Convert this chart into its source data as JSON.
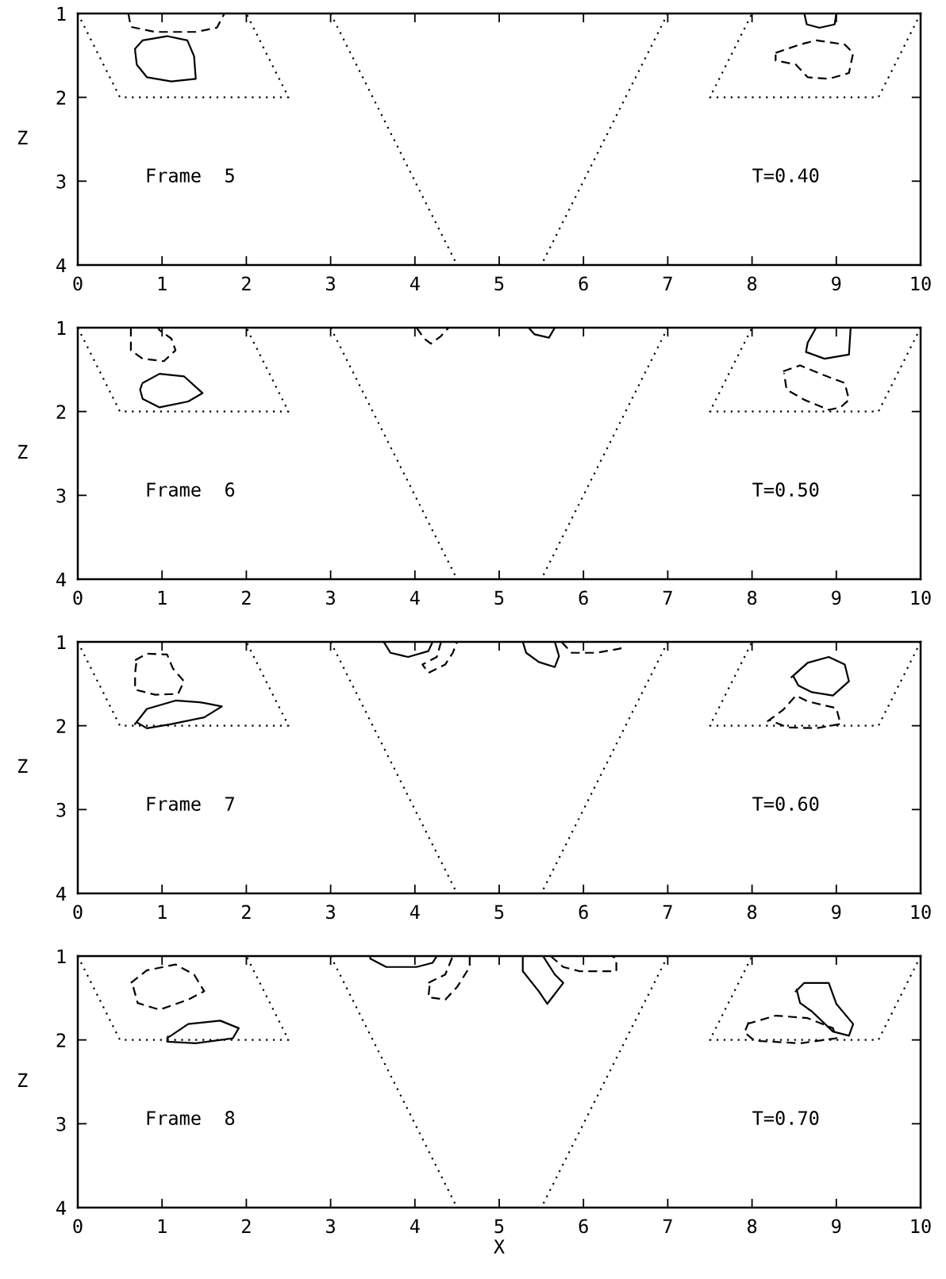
{
  "chart_data": [
    {
      "type": "line",
      "ylabel": "Z",
      "annotations": [
        "Frame  5",
        "T=0.40"
      ],
      "xlim": [
        0,
        10
      ],
      "ylim": [
        4,
        1
      ],
      "xticks": [
        0,
        1,
        2,
        3,
        4,
        5,
        6,
        7,
        8,
        9,
        10
      ],
      "yticks": [
        1,
        2,
        3,
        4
      ],
      "grid": false,
      "legend": false,
      "marker": "none",
      "series": [
        {
          "color": "#000000",
          "line_style": "dotted",
          "x": [
            0,
            0.5,
            2.5,
            2
          ],
          "values": [
            1,
            2,
            2,
            1
          ]
        },
        {
          "color": "#000000",
          "line_style": "dotted",
          "x": [
            3,
            4.5
          ],
          "values": [
            1,
            4
          ]
        },
        {
          "color": "#000000",
          "line_style": "dotted",
          "x": [
            7,
            5.5
          ],
          "values": [
            1,
            4
          ]
        },
        {
          "color": "#000000",
          "line_style": "dotted",
          "x": [
            10,
            9.5,
            7.5,
            8
          ],
          "values": [
            1,
            2,
            2,
            1
          ]
        },
        {
          "color": "#000000",
          "line_style": "dashed",
          "x": [
            0.6,
            0.63,
            0.92,
            1.4,
            1.65,
            1.74
          ],
          "values": [
            1.0,
            1.16,
            1.22,
            1.22,
            1.17,
            1.0
          ]
        },
        {
          "color": "#000000",
          "line_style": "solid",
          "x": [
            0.68,
            0.77,
            1.06,
            1.3,
            1.38,
            1.4,
            1.11,
            0.82,
            0.7,
            0.68
          ],
          "values": [
            1.42,
            1.32,
            1.27,
            1.32,
            1.51,
            1.78,
            1.81,
            1.76,
            1.61,
            1.44
          ]
        },
        {
          "color": "#000000",
          "line_style": "solid",
          "x": [
            8.62,
            8.65,
            8.8,
            8.98,
            9.0
          ],
          "values": [
            1.0,
            1.13,
            1.17,
            1.13,
            1.0
          ]
        },
        {
          "color": "#000000",
          "line_style": "dashed",
          "x": [
            8.28,
            8.57,
            8.76,
            9.1,
            9.2,
            9.15,
            8.91,
            8.66,
            8.52,
            8.28,
            8.28
          ],
          "values": [
            1.47,
            1.37,
            1.32,
            1.37,
            1.47,
            1.71,
            1.78,
            1.76,
            1.61,
            1.56,
            1.49
          ]
        }
      ]
    },
    {
      "type": "line",
      "ylabel": "Z",
      "annotations": [
        "Frame  6",
        "T=0.50"
      ],
      "xlim": [
        0,
        10
      ],
      "ylim": [
        4,
        1
      ],
      "xticks": [
        0,
        1,
        2,
        3,
        4,
        5,
        6,
        7,
        8,
        9,
        10
      ],
      "yticks": [
        1,
        2,
        3,
        4
      ],
      "grid": false,
      "legend": false,
      "marker": "none",
      "series": [
        {
          "color": "#000000",
          "line_style": "dotted",
          "x": [
            0,
            0.5,
            2.5,
            2
          ],
          "values": [
            1,
            2,
            2,
            1
          ]
        },
        {
          "color": "#000000",
          "line_style": "dotted",
          "x": [
            3,
            4.5
          ],
          "values": [
            1,
            4
          ]
        },
        {
          "color": "#000000",
          "line_style": "dotted",
          "x": [
            7,
            5.5
          ],
          "values": [
            1,
            4
          ]
        },
        {
          "color": "#000000",
          "line_style": "dotted",
          "x": [
            10,
            9.5,
            7.5,
            8
          ],
          "values": [
            1,
            2,
            2,
            1
          ]
        },
        {
          "color": "#000000",
          "line_style": "dashed",
          "x": [
            0.63,
            0.63,
            0.77,
            1.02,
            1.16,
            1.11,
            0.97,
            0.95
          ],
          "values": [
            1.0,
            1.27,
            1.37,
            1.4,
            1.27,
            1.13,
            1.03,
            1.0
          ]
        },
        {
          "color": "#000000",
          "line_style": "solid",
          "x": [
            0.77,
            0.97,
            1.26,
            1.48,
            1.31,
            0.97,
            0.77,
            0.74,
            0.76
          ],
          "values": [
            1.66,
            1.55,
            1.58,
            1.78,
            1.88,
            1.95,
            1.85,
            1.74,
            1.68
          ]
        },
        {
          "color": "#000000",
          "line_style": "dashed",
          "x": [
            4.02,
            4.11,
            4.19,
            4.31,
            4.4
          ],
          "values": [
            1.0,
            1.13,
            1.19,
            1.1,
            1.0
          ]
        },
        {
          "color": "#000000",
          "line_style": "solid",
          "x": [
            5.35,
            5.42,
            5.59,
            5.66
          ],
          "values": [
            1.0,
            1.08,
            1.12,
            1.0
          ]
        },
        {
          "color": "#000000",
          "line_style": "solid",
          "x": [
            8.76,
            8.66,
            8.64,
            8.86,
            9.15,
            9.17
          ],
          "values": [
            1.0,
            1.18,
            1.29,
            1.37,
            1.32,
            1.0
          ]
        },
        {
          "color": "#000000",
          "line_style": "dashed",
          "x": [
            8.37,
            8.57,
            8.81,
            9.1,
            9.15,
            9.05,
            8.91,
            8.62,
            8.41,
            8.38
          ],
          "values": [
            1.52,
            1.45,
            1.55,
            1.66,
            1.86,
            1.95,
            1.98,
            1.86,
            1.74,
            1.54
          ]
        }
      ]
    },
    {
      "type": "line",
      "ylabel": "Z",
      "annotations": [
        "Frame  7",
        "T=0.60"
      ],
      "xlim": [
        0,
        10
      ],
      "ylim": [
        4,
        1
      ],
      "xticks": [
        0,
        1,
        2,
        3,
        4,
        5,
        6,
        7,
        8,
        9,
        10
      ],
      "yticks": [
        1,
        2,
        3,
        4
      ],
      "grid": false,
      "legend": false,
      "marker": "none",
      "series": [
        {
          "color": "#000000",
          "line_style": "dotted",
          "x": [
            0,
            0.5,
            2.5,
            2
          ],
          "values": [
            1,
            2,
            2,
            1
          ]
        },
        {
          "color": "#000000",
          "line_style": "dotted",
          "x": [
            3,
            4.5
          ],
          "values": [
            1,
            4
          ]
        },
        {
          "color": "#000000",
          "line_style": "dotted",
          "x": [
            7,
            5.5
          ],
          "values": [
            1,
            4
          ]
        },
        {
          "color": "#000000",
          "line_style": "dotted",
          "x": [
            10,
            9.5,
            7.5,
            8
          ],
          "values": [
            1,
            2,
            2,
            1
          ]
        },
        {
          "color": "#000000",
          "line_style": "dashed",
          "x": [
            0.68,
            0.82,
            1.06,
            1.13,
            1.26,
            1.19,
            0.92,
            0.68,
            0.68,
            0.7
          ],
          "values": [
            1.22,
            1.14,
            1.15,
            1.32,
            1.47,
            1.62,
            1.63,
            1.57,
            1.37,
            1.21
          ]
        },
        {
          "color": "#000000",
          "line_style": "solid",
          "x": [
            0.68,
            0.82,
            1.16,
            1.45,
            1.71,
            1.5,
            1.11,
            0.82,
            0.7
          ],
          "values": [
            1.98,
            1.8,
            1.7,
            1.72,
            1.77,
            1.9,
            1.98,
            2.03,
            1.96
          ]
        },
        {
          "color": "#000000",
          "line_style": "solid",
          "x": [
            3.63,
            3.71,
            3.92,
            4.16,
            4.21
          ],
          "values": [
            1.0,
            1.13,
            1.18,
            1.11,
            1.0
          ]
        },
        {
          "color": "#000000",
          "line_style": "dashed",
          "x": [
            4.31,
            4.26,
            4.09,
            4.16,
            4.36,
            4.45,
            4.5
          ],
          "values": [
            1.0,
            1.18,
            1.27,
            1.37,
            1.27,
            1.13,
            1.0
          ]
        },
        {
          "color": "#000000",
          "line_style": "solid",
          "x": [
            5.28,
            5.32,
            5.47,
            5.66,
            5.71,
            5.66
          ],
          "values": [
            1.0,
            1.13,
            1.24,
            1.3,
            1.17,
            1.0
          ]
        },
        {
          "color": "#000000",
          "line_style": "dashed",
          "x": [
            5.74,
            5.86,
            6.15,
            6.44,
            6.46
          ],
          "values": [
            1.0,
            1.13,
            1.13,
            1.08,
            1.0
          ]
        },
        {
          "color": "#000000",
          "line_style": "solid",
          "x": [
            8.47,
            8.66,
            8.91,
            9.1,
            9.15,
            8.96,
            8.71,
            8.55,
            8.49
          ],
          "values": [
            1.42,
            1.25,
            1.18,
            1.27,
            1.47,
            1.64,
            1.6,
            1.52,
            1.41
          ]
        },
        {
          "color": "#000000",
          "line_style": "dashed",
          "x": [
            8.18,
            8.37,
            8.52,
            8.66,
            9.0,
            9.05,
            8.76,
            8.42,
            8.2
          ],
          "values": [
            1.95,
            1.81,
            1.64,
            1.71,
            1.79,
            1.98,
            2.03,
            2.02,
            1.93
          ]
        }
      ]
    },
    {
      "type": "line",
      "ylabel": "Z",
      "xlabel": "X",
      "annotations": [
        "Frame  8",
        "T=0.70"
      ],
      "xlim": [
        0,
        10
      ],
      "ylim": [
        4,
        1
      ],
      "xticks": [
        0,
        1,
        2,
        3,
        4,
        5,
        6,
        7,
        8,
        9,
        10
      ],
      "yticks": [
        1,
        2,
        3,
        4
      ],
      "grid": false,
      "legend": false,
      "marker": "none",
      "series": [
        {
          "color": "#000000",
          "line_style": "dotted",
          "x": [
            0,
            0.5,
            2.5,
            2
          ],
          "values": [
            1,
            2,
            2,
            1
          ]
        },
        {
          "color": "#000000",
          "line_style": "dotted",
          "x": [
            3,
            4.5
          ],
          "values": [
            1,
            4
          ]
        },
        {
          "color": "#000000",
          "line_style": "dotted",
          "x": [
            7,
            5.5
          ],
          "values": [
            1,
            4
          ]
        },
        {
          "color": "#000000",
          "line_style": "dotted",
          "x": [
            10,
            9.5,
            7.5,
            8
          ],
          "values": [
            1,
            2,
            2,
            1
          ]
        },
        {
          "color": "#000000",
          "line_style": "dashed",
          "x": [
            0.63,
            0.82,
            1.16,
            1.38,
            1.5,
            1.31,
            0.97,
            0.71,
            0.64
          ],
          "values": [
            1.32,
            1.17,
            1.1,
            1.22,
            1.42,
            1.52,
            1.64,
            1.56,
            1.3
          ]
        },
        {
          "color": "#000000",
          "line_style": "solid",
          "x": [
            1.06,
            1.31,
            1.69,
            1.91,
            1.84,
            1.4,
            1.06,
            1.07
          ],
          "values": [
            1.98,
            1.81,
            1.77,
            1.86,
            1.98,
            2.04,
            2.02,
            1.96
          ]
        },
        {
          "color": "#000000",
          "line_style": "solid",
          "x": [
            3.47,
            3.47,
            3.66,
            4.02,
            4.21,
            4.26
          ],
          "values": [
            1.0,
            1.03,
            1.13,
            1.13,
            1.08,
            1.0
          ]
        },
        {
          "color": "#000000",
          "line_style": "dashed",
          "x": [
            4.16,
            4.36,
            4.45,
            4.65,
            4.65,
            4.5,
            4.36,
            4.16,
            4.18
          ],
          "values": [
            1.32,
            1.22,
            1.0,
            1.0,
            1.13,
            1.37,
            1.52,
            1.49,
            1.3
          ]
        },
        {
          "color": "#000000",
          "line_style": "solid",
          "x": [
            5.28,
            5.28,
            5.47,
            5.57,
            5.76,
            5.66,
            5.52
          ],
          "values": [
            1.0,
            1.18,
            1.42,
            1.57,
            1.32,
            1.22,
            1.0
          ]
        },
        {
          "color": "#000000",
          "line_style": "dashed",
          "x": [
            5.61,
            5.76,
            5.95,
            6.39,
            6.39,
            6.34
          ],
          "values": [
            1.0,
            1.13,
            1.18,
            1.18,
            1.03,
            1.0
          ]
        },
        {
          "color": "#000000",
          "line_style": "solid",
          "x": [
            8.52,
            8.62,
            8.91,
            9.0,
            9.2,
            9.15,
            8.96,
            8.71,
            8.57,
            8.53
          ],
          "values": [
            1.42,
            1.32,
            1.32,
            1.57,
            1.81,
            1.95,
            1.9,
            1.66,
            1.56,
            1.4
          ]
        },
        {
          "color": "#000000",
          "line_style": "dashed",
          "x": [
            7.94,
            8.28,
            8.66,
            8.96,
            9.0,
            8.57,
            8.03,
            7.91,
            7.96
          ],
          "values": [
            1.81,
            1.71,
            1.74,
            1.86,
            1.98,
            2.04,
            2.01,
            1.91,
            1.79
          ]
        }
      ]
    }
  ]
}
